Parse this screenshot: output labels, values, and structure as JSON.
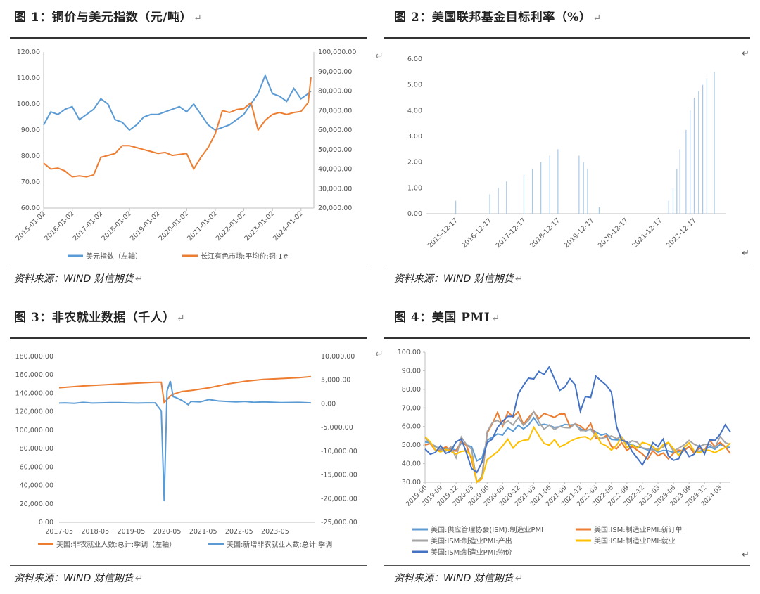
{
  "return_mark": "↵",
  "source_text": "资料来源：WIND 财信期货",
  "figures": [
    {
      "heading": "图 1：铜价与美元指数（元/吨）"
    },
    {
      "heading": "图 2：美国联邦基金目标利率（%）"
    },
    {
      "heading": "图 3：非农就业数据（千人）"
    },
    {
      "heading": "图 4：美国 PMI"
    }
  ],
  "colors": {
    "blue": "#5b9bd5",
    "orange": "#ed7d31",
    "gray": "#a5a5a5",
    "yellow": "#ffc000",
    "darkblue": "#4472c4"
  },
  "chart_data": [
    {
      "type": "line",
      "x_tick_labels": [
        "2015-01-02",
        "2016-01-02",
        "2017-01-02",
        "2018-01-02",
        "2019-01-02",
        "2020-01-02",
        "2021-01-02",
        "2022-01-02",
        "2023-01-02",
        "2024-01-02"
      ],
      "y_left_ticks": [
        "60.00",
        "70.00",
        "80.00",
        "90.00",
        "100.00",
        "110.00",
        "120.00"
      ],
      "y_right_ticks": [
        "20,000.00",
        "30,000.00",
        "40,000.00",
        "50,000.00",
        "60,000.00",
        "70,000.00",
        "80,000.00",
        "90,000.00",
        "100,000.00"
      ],
      "ylim_left": [
        60,
        120
      ],
      "ylim_right": [
        20000,
        100000
      ],
      "x": [
        2015.0,
        2015.25,
        2015.5,
        2015.75,
        2016.0,
        2016.25,
        2016.5,
        2016.75,
        2017.0,
        2017.25,
        2017.5,
        2017.75,
        2018.0,
        2018.25,
        2018.5,
        2018.75,
        2019.0,
        2019.25,
        2019.5,
        2019.75,
        2020.0,
        2020.25,
        2020.5,
        2020.75,
        2021.0,
        2021.25,
        2021.5,
        2021.75,
        2022.0,
        2022.25,
        2022.5,
        2022.75,
        2023.0,
        2023.25,
        2023.5,
        2023.75,
        2024.0,
        2024.25,
        2024.35
      ],
      "series": [
        {
          "name": "美元指数（左轴）",
          "axis": "left",
          "color": "#5b9bd5",
          "values": [
            92,
            97,
            96,
            98,
            99,
            94,
            96,
            98,
            102,
            100,
            94,
            93,
            90,
            92,
            95,
            96,
            96,
            97,
            98,
            99,
            97,
            100,
            96,
            92,
            90,
            91,
            92,
            94,
            96,
            100,
            104,
            111,
            104,
            103,
            101,
            106,
            102,
            104,
            105
          ]
        },
        {
          "name": "长江有色市场:平均价:铜:1#",
          "axis": "right",
          "color": "#ed7d31",
          "values": [
            43000,
            40000,
            40500,
            39000,
            36000,
            36500,
            36000,
            37000,
            46000,
            47000,
            48000,
            52000,
            52000,
            51000,
            50000,
            49000,
            48000,
            48500,
            47000,
            47500,
            48000,
            40000,
            46000,
            51000,
            58000,
            70000,
            69000,
            70500,
            71000,
            74000,
            60000,
            65000,
            68000,
            69000,
            68000,
            69000,
            69500,
            74000,
            87000
          ]
        }
      ]
    },
    {
      "type": "bar",
      "x_tick_labels": [
        "2015-12-17",
        "2016-12-17",
        "2017-12-17",
        "2018-12-17",
        "2019-12-17",
        "2020-12-17",
        "2021-12-17",
        "2022-12-17"
      ],
      "y_ticks": [
        "0.00",
        "1.00",
        "2.00",
        "3.00",
        "4.00",
        "5.00",
        "6.00"
      ],
      "ylim": [
        0,
        6
      ],
      "x": [
        2015.96,
        2016.96,
        2017.21,
        2017.45,
        2017.96,
        2018.21,
        2018.46,
        2018.72,
        2018.96,
        2019.58,
        2019.71,
        2019.83,
        2020.17,
        2022.21,
        2022.34,
        2022.45,
        2022.54,
        2022.72,
        2022.84,
        2022.96,
        2023.09,
        2023.21,
        2023.33,
        2023.55
      ],
      "values": [
        0.5,
        0.75,
        1.0,
        1.25,
        1.5,
        1.75,
        2.0,
        2.25,
        2.5,
        2.25,
        2.0,
        1.75,
        0.25,
        0.5,
        1.0,
        1.75,
        2.5,
        3.25,
        4.0,
        4.5,
        4.75,
        5.0,
        5.25,
        5.5
      ],
      "color": "#a8c8e8"
    },
    {
      "type": "line",
      "x_tick_labels": [
        "2017-05",
        "2018-05",
        "2019-05",
        "2020-05",
        "2021-05",
        "2022-05",
        "2023-05"
      ],
      "y_left_ticks": [
        "0.00",
        "20,000.00",
        "40,000.00",
        "60,000.00",
        "80,000.00",
        "100,000.00",
        "120,000.00",
        "140,000.00",
        "160,000.00",
        "180,000.00"
      ],
      "y_right_ticks": [
        "-25,000.00",
        "-20,000.00",
        "-15,000.00",
        "-10,000.00",
        "-5,000.00",
        "0.00",
        "5,000.00",
        "10,000.00"
      ],
      "ylim_left": [
        0,
        180000
      ],
      "ylim_right": [
        -25000,
        10000
      ],
      "series": [
        {
          "name": "美国:非农就业人数:总计:季调（左轴）",
          "axis": "left",
          "color": "#ed7d31",
          "x": [
            2017.33,
            2018.0,
            2018.5,
            2019.0,
            2019.5,
            2020.0,
            2020.17,
            2020.25,
            2020.33,
            2020.42,
            2020.5,
            2020.75,
            2021.0,
            2021.5,
            2022.0,
            2022.5,
            2023.0,
            2023.5,
            2024.0,
            2024.33
          ],
          "values": [
            146000,
            148000,
            149000,
            150000,
            151000,
            152000,
            152000,
            130000,
            133000,
            137000,
            139000,
            142000,
            143000,
            146000,
            150000,
            153000,
            155000,
            156000,
            157000,
            158000
          ]
        },
        {
          "name": "美国:新增非农就业人数:总计:季调",
          "axis": "right",
          "color": "#5b9bd5",
          "x": [
            2017.33,
            2017.5,
            2017.75,
            2018.0,
            2018.25,
            2018.5,
            2018.75,
            2019.0,
            2019.25,
            2019.5,
            2019.75,
            2020.0,
            2020.17,
            2020.25,
            2020.33,
            2020.42,
            2020.5,
            2020.58,
            2020.75,
            2020.92,
            2021.0,
            2021.25,
            2021.5,
            2021.75,
            2022.0,
            2022.25,
            2022.5,
            2022.75,
            2023.0,
            2023.5,
            2024.0,
            2024.33
          ],
          "values": [
            150,
            200,
            100,
            300,
            150,
            200,
            250,
            250,
            200,
            150,
            200,
            200,
            -1500,
            -20500,
            2700,
            4800,
            1500,
            1300,
            700,
            -200,
            500,
            400,
            900,
            600,
            500,
            400,
            500,
            300,
            400,
            250,
            300,
            200
          ]
        }
      ]
    },
    {
      "type": "line",
      "x_tick_labels": [
        "2019-06",
        "2019-09",
        "2019-12",
        "2020-03",
        "2020-06",
        "2020-09",
        "2020-12",
        "2021-03",
        "2021-06",
        "2021-09",
        "2021-12",
        "2022-03",
        "2022-06",
        "2022-09",
        "2022-12",
        "2023-03",
        "2023-06",
        "2023-09",
        "2023-12",
        "2024-03"
      ],
      "y_ticks": [
        "30.00",
        "40.00",
        "50.00",
        "60.00",
        "70.00",
        "80.00",
        "90.00",
        "100.00"
      ],
      "ylim": [
        30,
        100
      ],
      "x": [
        "2019-06",
        "2019-07",
        "2019-08",
        "2019-09",
        "2019-10",
        "2019-11",
        "2019-12",
        "2020-01",
        "2020-02",
        "2020-03",
        "2020-04",
        "2020-05",
        "2020-06",
        "2020-07",
        "2020-08",
        "2020-09",
        "2020-10",
        "2020-11",
        "2020-12",
        "2021-01",
        "2021-02",
        "2021-03",
        "2021-04",
        "2021-05",
        "2021-06",
        "2021-07",
        "2021-08",
        "2021-09",
        "2021-10",
        "2021-11",
        "2021-12",
        "2022-01",
        "2022-02",
        "2022-03",
        "2022-04",
        "2022-05",
        "2022-06",
        "2022-07",
        "2022-08",
        "2022-09",
        "2022-10",
        "2022-11",
        "2022-12",
        "2023-01",
        "2023-02",
        "2023-03",
        "2023-04",
        "2023-05",
        "2023-06",
        "2023-07",
        "2023-08",
        "2023-09",
        "2023-10",
        "2023-11",
        "2023-12",
        "2024-01",
        "2024-02",
        "2024-03",
        "2024-04",
        "2024-05"
      ],
      "series": [
        {
          "name": "美国:供应管理协会(ISM):制造业PMI",
          "color": "#5b9bd5",
          "values": [
            51.7,
            51.2,
            49.1,
            47.8,
            48.3,
            48.1,
            47.2,
            50.9,
            50.1,
            49.1,
            41.5,
            43.1,
            52.6,
            54.2,
            56.0,
            55.4,
            59.3,
            57.5,
            60.7,
            58.7,
            60.8,
            64.7,
            60.7,
            61.2,
            60.6,
            59.5,
            59.9,
            61.1,
            60.8,
            61.1,
            58.8,
            57.6,
            58.6,
            57.1,
            55.4,
            56.1,
            53.0,
            52.8,
            52.8,
            50.9,
            50.2,
            49.0,
            48.4,
            47.4,
            47.7,
            46.3,
            47.1,
            46.9,
            46.0,
            46.4,
            47.6,
            49.0,
            46.7,
            46.7,
            47.4,
            49.1,
            47.8,
            50.3,
            49.2,
            48.7
          ]
        },
        {
          "name": "美国:ISM:制造业PMI:新订单",
          "color": "#ed7d31",
          "values": [
            50.0,
            50.8,
            47.2,
            47.3,
            49.1,
            47.2,
            46.8,
            52.0,
            49.8,
            42.2,
            27.1,
            31.8,
            56.4,
            61.5,
            67.6,
            60.2,
            67.9,
            65.1,
            67.9,
            61.1,
            64.8,
            68.0,
            64.3,
            67.0,
            66.0,
            64.9,
            66.7,
            66.7,
            59.8,
            61.5,
            60.4,
            57.9,
            61.7,
            53.8,
            53.5,
            55.1,
            49.2,
            48.0,
            51.3,
            47.1,
            49.2,
            47.2,
            45.2,
            42.5,
            47.0,
            44.3,
            45.7,
            42.6,
            45.6,
            47.3,
            46.8,
            49.2,
            45.5,
            48.3,
            47.1,
            52.5,
            49.2,
            51.4,
            49.1,
            45.4
          ]
        },
        {
          "name": "美国:ISM:制造业PMI:产出",
          "color": "#a5a5a5",
          "values": [
            54.1,
            50.8,
            49.5,
            47.3,
            46.7,
            49.1,
            43.2,
            54.3,
            50.3,
            47.7,
            27.5,
            33.2,
            57.3,
            62.1,
            63.3,
            61.0,
            63.0,
            60.8,
            64.8,
            60.7,
            63.2,
            68.1,
            62.5,
            58.5,
            60.8,
            58.4,
            60.0,
            59.4,
            59.3,
            61.5,
            57.8,
            57.8,
            58.5,
            54.5,
            53.6,
            54.2,
            54.9,
            53.5,
            54.5,
            50.6,
            52.3,
            51.5,
            48.5,
            48.0,
            47.3,
            47.8,
            48.9,
            51.1,
            46.7,
            48.3,
            50.0,
            52.5,
            50.4,
            49.3,
            50.3,
            50.4,
            48.4,
            54.6,
            51.3,
            50.2
          ]
        },
        {
          "name": "美国:ISM:制造业PMI:就业",
          "color": "#ffc000",
          "values": [
            54.5,
            51.7,
            47.4,
            46.3,
            47.7,
            46.6,
            45.1,
            46.6,
            46.9,
            43.8,
            27.5,
            32.1,
            42.1,
            44.3,
            46.4,
            49.6,
            53.2,
            48.4,
            51.5,
            52.6,
            52.9,
            59.6,
            55.1,
            50.9,
            49.9,
            52.9,
            49.0,
            50.2,
            52.0,
            53.3,
            54.2,
            54.5,
            52.9,
            56.3,
            50.9,
            49.6,
            47.3,
            49.9,
            54.2,
            48.7,
            50.0,
            48.4,
            51.4,
            50.6,
            49.1,
            46.9,
            50.2,
            51.4,
            48.1,
            44.4,
            48.5,
            51.2,
            46.8,
            45.8,
            47.5,
            47.1,
            45.9,
            47.4,
            48.6,
            51.1
          ]
        },
        {
          "name": "美国:ISM:制造业PMI:物价",
          "color": "#4472c4",
          "values": [
            47.9,
            45.1,
            46.0,
            49.7,
            45.5,
            46.7,
            51.7,
            53.3,
            45.9,
            37.4,
            35.3,
            40.8,
            51.3,
            53.2,
            59.5,
            62.8,
            65.5,
            65.4,
            77.6,
            82.1,
            86.0,
            85.6,
            89.6,
            88.0,
            92.1,
            85.7,
            79.4,
            81.2,
            85.7,
            82.4,
            68.2,
            76.1,
            75.6,
            87.1,
            84.6,
            82.2,
            78.5,
            60.0,
            52.5,
            51.7,
            46.6,
            43.0,
            39.4,
            44.5,
            51.3,
            49.2,
            53.2,
            44.2,
            41.8,
            42.6,
            48.4,
            43.8,
            45.1,
            49.9,
            45.2,
            52.9,
            52.5,
            55.8,
            60.9,
            57.0
          ]
        }
      ]
    }
  ]
}
